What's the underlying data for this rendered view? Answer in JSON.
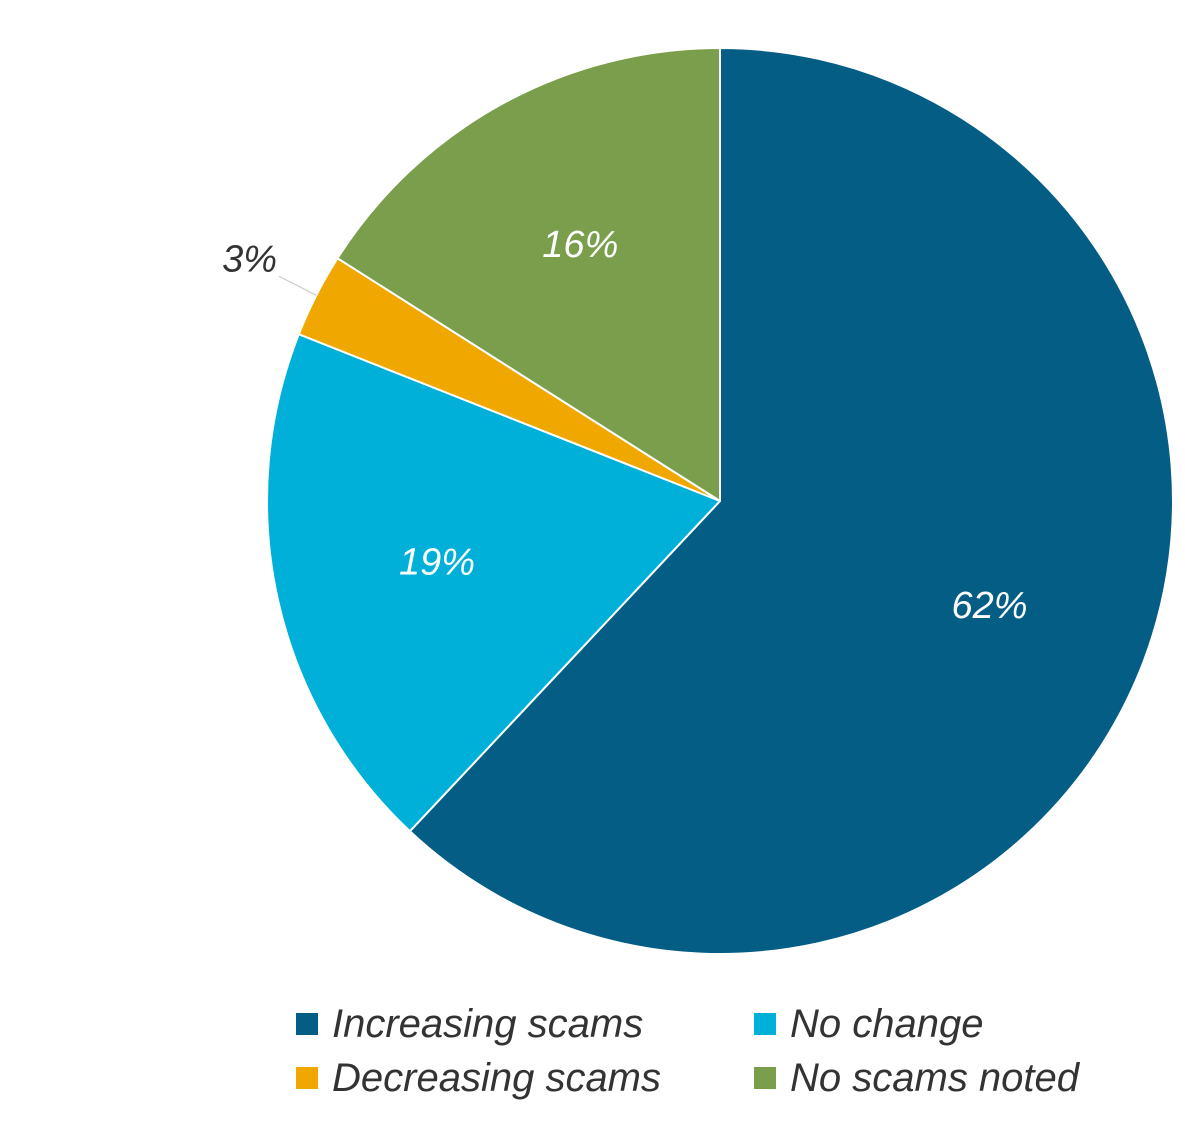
{
  "chart_data": {
    "type": "pie",
    "title": "",
    "start_angle": "12 o'clock, clockwise",
    "slices": [
      {
        "name": "Increasing scams",
        "value": 62,
        "label": "62%",
        "color": "#045D84",
        "label_placement": "inside"
      },
      {
        "name": "No change",
        "value": 19,
        "label": "19%",
        "color": "#00B0D8",
        "label_placement": "inside"
      },
      {
        "name": "Decreasing scams",
        "value": 3,
        "label": "3%",
        "color": "#F0A800",
        "label_placement": "outside"
      },
      {
        "name": "No scams noted",
        "value": 16,
        "label": "16%",
        "color": "#7A9E4B",
        "label_placement": "inside"
      }
    ],
    "legend": {
      "placement": "bottom",
      "items": [
        {
          "name": "Increasing scams",
          "color": "#045D84"
        },
        {
          "name": "No change",
          "color": "#00B0D8"
        },
        {
          "name": "Decreasing scams",
          "color": "#F0A800"
        },
        {
          "name": "No scams noted",
          "color": "#7A9E4B"
        }
      ]
    }
  }
}
